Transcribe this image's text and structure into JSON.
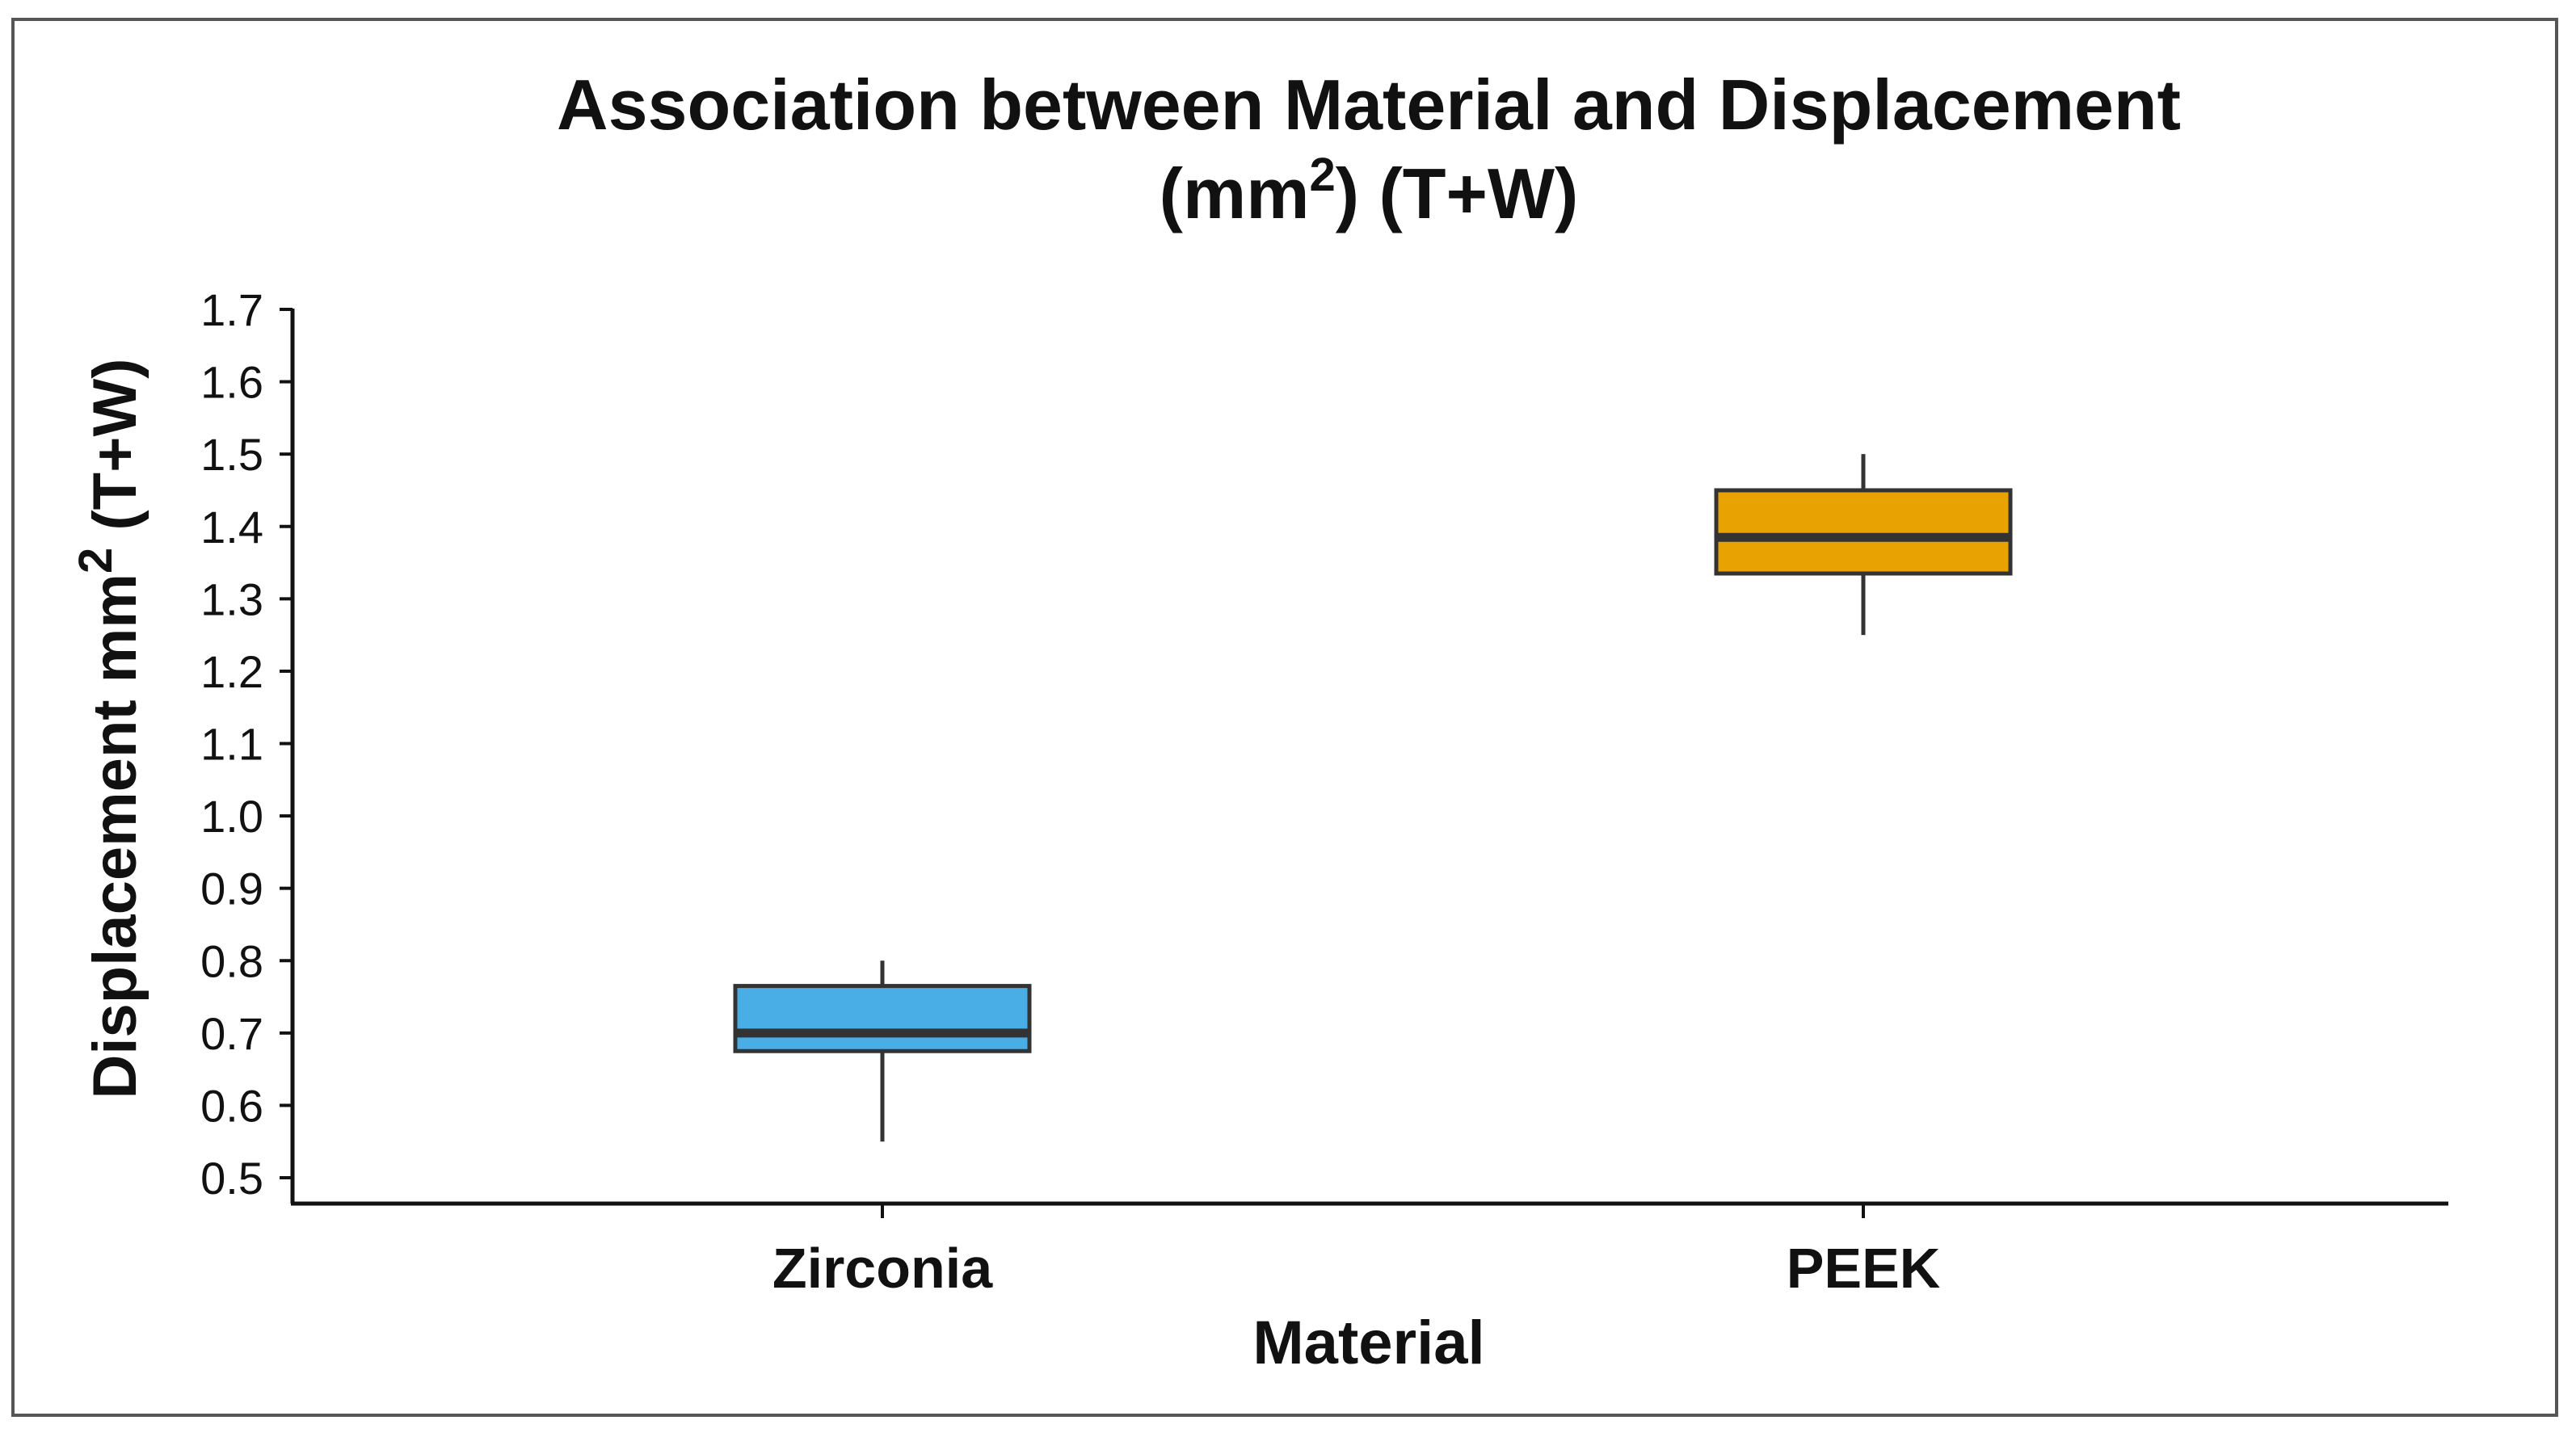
{
  "chart_data": {
    "type": "box",
    "title_line1": "Association between Material and Displacement",
    "title_line2_pre": "(mm",
    "title_line2_sup": "2",
    "title_line2_post": ") (T+W)",
    "xlabel": "Material",
    "ylabel_pre": "Displacement mm",
    "ylabel_sup": "2",
    "ylabel_post": " (T+W)",
    "ylim": [
      0.5,
      1.7
    ],
    "yticks": [
      "1.7",
      "1.6",
      "1.5",
      "1.4",
      "1.3",
      "1.2",
      "1.1",
      "1.0",
      "0.9",
      "0.8",
      "0.7",
      "0.6",
      "0.5"
    ],
    "categories": [
      "Zirconia",
      "PEEK"
    ],
    "boxes": [
      {
        "name": "Zirconia",
        "min": 0.55,
        "q1": 0.675,
        "median": 0.7,
        "q3": 0.765,
        "max": 0.8,
        "color": "#4aaee6"
      },
      {
        "name": "PEEK",
        "min": 1.25,
        "q1": 1.335,
        "median": 1.385,
        "q3": 1.45,
        "max": 1.5,
        "color": "#e8a202"
      }
    ],
    "grid": false
  }
}
